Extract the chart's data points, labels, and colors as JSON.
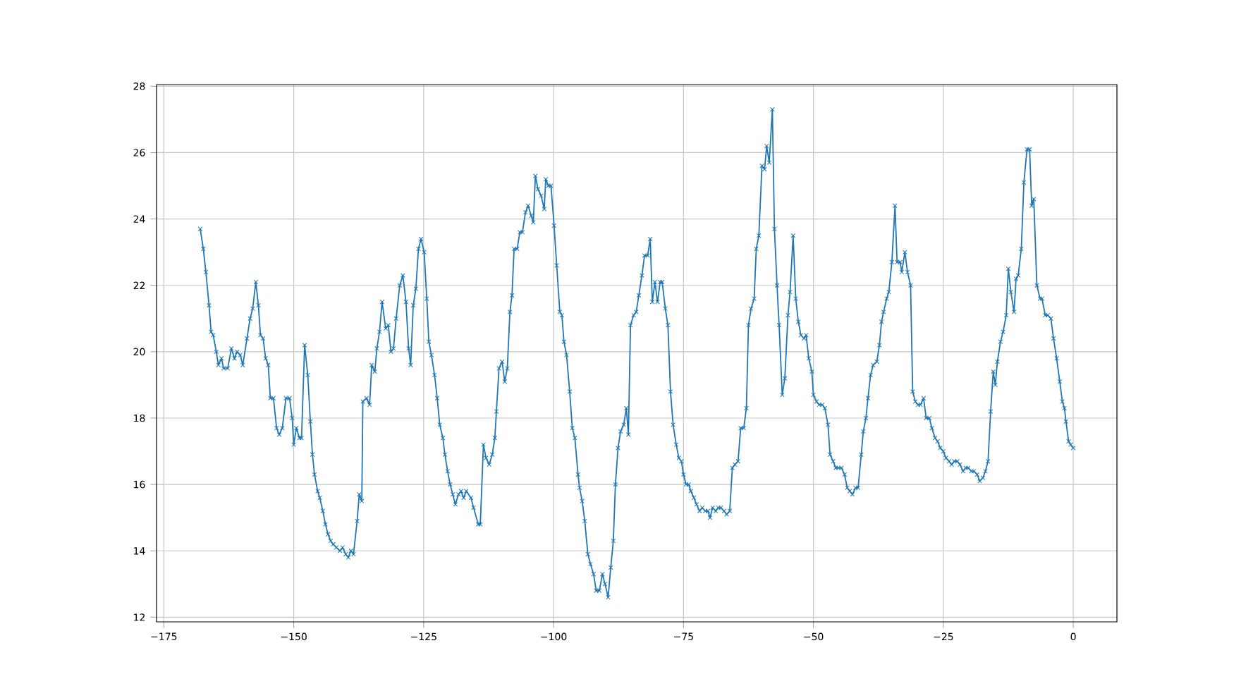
{
  "chart_data": {
    "type": "line",
    "color": "#1f77b4",
    "marker": "cross",
    "grid": true,
    "xlim": [
      -176.4,
      8.4
    ],
    "ylim": [
      11.86,
      28.05
    ],
    "xticks": [
      {
        "value": -175,
        "label": "−175"
      },
      {
        "value": -150,
        "label": "−150"
      },
      {
        "value": -125,
        "label": "−125"
      },
      {
        "value": -100,
        "label": "−100"
      },
      {
        "value": -75,
        "label": "−75"
      },
      {
        "value": -50,
        "label": "−50"
      },
      {
        "value": -25,
        "label": "−25"
      },
      0
    ],
    "yticks": [
      12,
      14,
      16,
      18,
      20,
      22,
      24,
      26,
      28
    ],
    "x": [
      -168.0,
      -167.4,
      -166.9,
      -166.3,
      -165.9,
      -165.5,
      -164.9,
      -164.5,
      -163.9,
      -163.5,
      -162.7,
      -162.0,
      -161.4,
      -160.9,
      -160.3,
      -159.8,
      -159.0,
      -158.4,
      -157.9,
      -157.3,
      -156.8,
      -156.4,
      -155.9,
      -155.4,
      -154.9,
      -154.5,
      -153.9,
      -153.3,
      -152.8,
      -152.2,
      -151.5,
      -150.8,
      -150.3,
      -150.0,
      -149.5,
      -148.9,
      -148.5,
      -147.9,
      -147.3,
      -146.8,
      -146.4,
      -146.0,
      -145.4,
      -145.0,
      -144.4,
      -143.9,
      -143.4,
      -142.9,
      -142.4,
      -141.8,
      -141.1,
      -140.6,
      -140.0,
      -139.5,
      -139.0,
      -138.5,
      -137.8,
      -137.4,
      -136.9,
      -136.7,
      -136.0,
      -135.4,
      -135.0,
      -134.4,
      -134.0,
      -133.5,
      -133.0,
      -132.3,
      -131.8,
      -131.3,
      -130.8,
      -130.3,
      -129.6,
      -129.0,
      -128.4,
      -127.9,
      -127.5,
      -127.0,
      -126.5,
      -126.0,
      -125.5,
      -124.9,
      -124.4,
      -124.0,
      -123.5,
      -122.9,
      -122.4,
      -121.9,
      -121.3,
      -120.9,
      -120.4,
      -119.9,
      -119.4,
      -118.9,
      -118.3,
      -117.8,
      -117.3,
      -116.8,
      -115.9,
      -115.4,
      -114.5,
      -114.1,
      -113.5,
      -113.0,
      -112.4,
      -111.8,
      -111.3,
      -111.0,
      -110.5,
      -109.9,
      -109.4,
      -108.9,
      -108.4,
      -108.0,
      -107.6,
      -107.0,
      -106.5,
      -106.0,
      -105.4,
      -104.9,
      -104.3,
      -103.9,
      -103.5,
      -103.0,
      -102.4,
      -101.8,
      -101.5,
      -101.0,
      -100.5,
      -99.9,
      -99.4,
      -98.8,
      -98.4,
      -98.0,
      -97.5,
      -96.9,
      -96.4,
      -95.9,
      -95.3,
      -95.0,
      -94.5,
      -94.0,
      -93.4,
      -92.9,
      -92.3,
      -91.8,
      -91.2,
      -90.6,
      -90.1,
      -89.5,
      -89.0,
      -88.5,
      -88.1,
      -87.6,
      -87.1,
      -86.5,
      -86.0,
      -85.6,
      -85.2,
      -84.6,
      -84.1,
      -83.6,
      -83.0,
      -82.5,
      -81.9,
      -81.4,
      -81.0,
      -80.5,
      -80.0,
      -79.5,
      -79.1,
      -78.5,
      -78.0,
      -77.5,
      -77.0,
      -76.4,
      -75.9,
      -75.4,
      -75.0,
      -74.5,
      -74.0,
      -73.6,
      -73.0,
      -72.5,
      -71.9,
      -71.4,
      -70.8,
      -70.3,
      -69.9,
      -69.4,
      -68.8,
      -68.3,
      -67.8,
      -67.2,
      -66.7,
      -66.1,
      -65.6,
      -65.1,
      -64.5,
      -64.0,
      -63.4,
      -62.9,
      -62.5,
      -62.0,
      -61.4,
      -61.0,
      -60.5,
      -59.9,
      -59.4,
      -59.0,
      -58.5,
      -57.9,
      -57.5,
      -57.0,
      -56.6,
      -56.0,
      -55.5,
      -54.9,
      -54.5,
      -53.9,
      -53.4,
      -52.9,
      -52.4,
      -51.8,
      -51.4,
      -50.9,
      -50.3,
      -50.0,
      -49.4,
      -48.9,
      -48.3,
      -47.8,
      -47.2,
      -46.8,
      -46.2,
      -45.7,
      -45.2,
      -44.6,
      -44.0,
      -43.5,
      -43.0,
      -42.5,
      -41.9,
      -41.4,
      -40.8,
      -40.4,
      -39.9,
      -39.5,
      -39.0,
      -38.5,
      -37.8,
      -37.3,
      -36.9,
      -36.5,
      -35.9,
      -35.5,
      -34.9,
      -34.3,
      -33.9,
      -33.3,
      -33.0,
      -32.4,
      -31.9,
      -31.3,
      -30.9,
      -30.4,
      -29.9,
      -29.4,
      -28.8,
      -28.3,
      -27.7,
      -27.2,
      -26.6,
      -26.1,
      -25.6,
      -25.0,
      -24.5,
      -23.9,
      -23.4,
      -22.9,
      -22.3,
      -21.8,
      -21.2,
      -20.7,
      -20.2,
      -19.6,
      -19.1,
      -18.5,
      -18.0,
      -17.4,
      -16.9,
      -16.4,
      -15.9,
      -15.4,
      -15.0,
      -14.6,
      -14.0,
      -13.5,
      -12.9,
      -12.5,
      -12.0,
      -11.4,
      -11.0,
      -10.6,
      -10.0,
      -9.5,
      -8.9,
      -8.4,
      -8.0,
      -7.6,
      -7.0,
      -6.4,
      -6.0,
      -5.4,
      -4.9,
      -4.3,
      -3.8,
      -3.2,
      -2.6,
      -2.1,
      -1.7,
      -1.4,
      -0.9,
      -0.5,
      0.0
    ],
    "values": [
      23.7,
      23.1,
      22.4,
      21.4,
      20.6,
      20.5,
      20.0,
      19.6,
      19.8,
      19.5,
      19.5,
      20.1,
      19.8,
      20.0,
      19.9,
      19.6,
      20.4,
      21.0,
      21.3,
      22.1,
      21.4,
      20.5,
      20.4,
      19.8,
      19.6,
      18.6,
      18.6,
      17.7,
      17.5,
      17.7,
      18.6,
      18.6,
      18.0,
      17.2,
      17.7,
      17.4,
      17.4,
      20.2,
      19.3,
      17.9,
      16.9,
      16.3,
      15.8,
      15.6,
      15.2,
      14.8,
      14.5,
      14.3,
      14.2,
      14.1,
      14.0,
      14.1,
      13.9,
      13.8,
      14.0,
      13.9,
      14.9,
      15.7,
      15.5,
      18.5,
      18.6,
      18.4,
      19.6,
      19.4,
      20.1,
      20.6,
      21.5,
      20.7,
      20.8,
      20.0,
      20.1,
      21.0,
      22.0,
      22.3,
      21.5,
      20.1,
      19.6,
      21.4,
      21.9,
      23.1,
      23.4,
      23.0,
      21.6,
      20.3,
      19.9,
      19.3,
      18.6,
      17.8,
      17.4,
      16.9,
      16.4,
      16.0,
      15.7,
      15.4,
      15.7,
      15.8,
      15.6,
      15.8,
      15.6,
      15.3,
      14.8,
      14.8,
      17.2,
      16.8,
      16.6,
      16.9,
      17.4,
      18.2,
      19.5,
      19.7,
      19.1,
      19.5,
      21.2,
      21.7,
      23.1,
      23.1,
      23.6,
      23.6,
      24.2,
      24.4,
      24.1,
      23.9,
      25.3,
      24.9,
      24.7,
      24.3,
      25.2,
      25.0,
      25.0,
      23.8,
      22.6,
      21.2,
      21.1,
      20.3,
      19.9,
      18.8,
      17.7,
      17.4,
      16.3,
      15.9,
      15.5,
      14.9,
      13.9,
      13.6,
      13.3,
      12.8,
      12.8,
      13.3,
      13.0,
      12.6,
      13.5,
      14.3,
      16.0,
      17.1,
      17.6,
      17.8,
      18.3,
      17.5,
      20.8,
      21.1,
      21.2,
      21.7,
      22.3,
      22.9,
      22.9,
      23.4,
      21.5,
      22.1,
      21.5,
      22.1,
      22.1,
      21.3,
      20.8,
      18.8,
      17.8,
      17.2,
      16.8,
      16.7,
      16.3,
      16.0,
      16.0,
      15.8,
      15.6,
      15.4,
      15.2,
      15.3,
      15.2,
      15.2,
      15.0,
      15.3,
      15.2,
      15.3,
      15.3,
      15.2,
      15.1,
      15.2,
      16.5,
      16.6,
      16.7,
      17.7,
      17.7,
      18.3,
      20.8,
      21.3,
      21.6,
      23.1,
      23.5,
      25.6,
      25.5,
      26.2,
      25.7,
      27.3,
      23.7,
      22.0,
      20.8,
      18.7,
      19.2,
      21.1,
      21.8,
      23.5,
      21.6,
      20.9,
      20.5,
      20.4,
      20.5,
      19.8,
      19.4,
      18.7,
      18.5,
      18.4,
      18.4,
      18.3,
      17.8,
      16.9,
      16.7,
      16.5,
      16.5,
      16.5,
      16.3,
      15.9,
      15.8,
      15.7,
      15.9,
      15.9,
      16.9,
      17.6,
      18.0,
      18.6,
      19.3,
      19.6,
      19.7,
      20.2,
      20.9,
      21.2,
      21.6,
      21.8,
      22.7,
      24.4,
      22.7,
      22.7,
      22.4,
      23.0,
      22.4,
      22.0,
      18.8,
      18.5,
      18.4,
      18.4,
      18.6,
      18.0,
      18.0,
      17.7,
      17.4,
      17.3,
      17.1,
      17.0,
      16.8,
      16.7,
      16.6,
      16.7,
      16.7,
      16.6,
      16.4,
      16.5,
      16.5,
      16.4,
      16.4,
      16.3,
      16.1,
      16.2,
      16.4,
      16.7,
      18.2,
      19.4,
      19.0,
      19.7,
      20.3,
      20.6,
      21.1,
      22.5,
      21.8,
      21.2,
      22.2,
      22.3,
      23.1,
      25.1,
      26.1,
      26.1,
      24.4,
      24.6,
      22.0,
      21.6,
      21.6,
      21.1,
      21.1,
      21.0,
      20.4,
      19.8,
      19.1,
      18.5,
      18.3,
      17.9,
      17.3,
      17.2,
      17.1
    ]
  }
}
